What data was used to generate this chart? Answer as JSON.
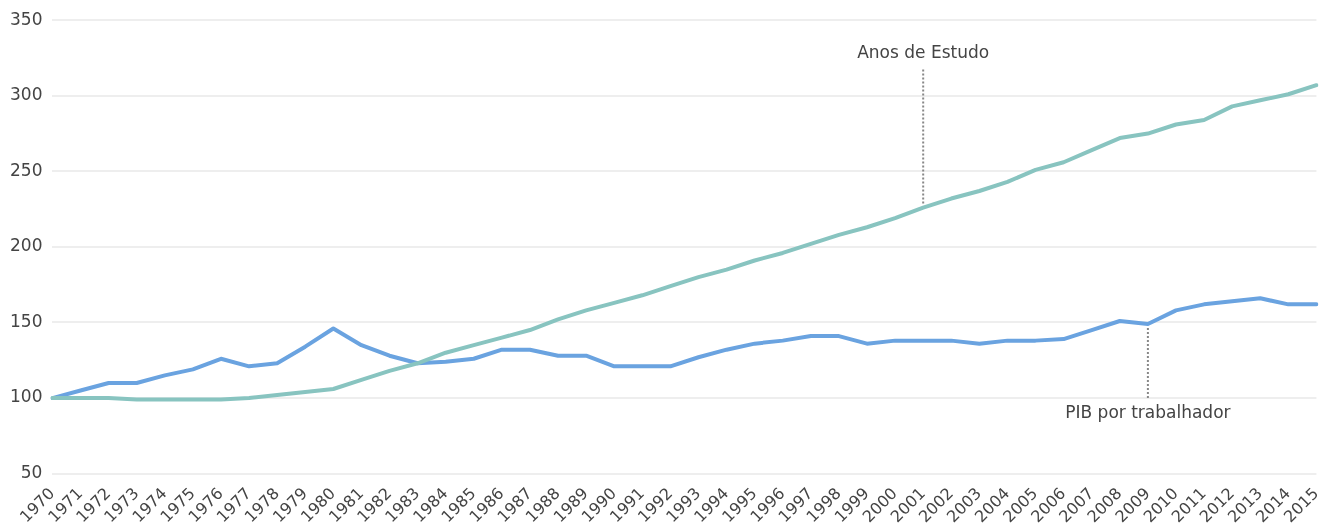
{
  "chart_data": {
    "type": "line",
    "categories": [
      "1970",
      "1971",
      "1972",
      "1973",
      "1974",
      "1975",
      "1976",
      "1977",
      "1978",
      "1979",
      "1980",
      "1981",
      "1982",
      "1983",
      "1984",
      "1985",
      "1986",
      "1987",
      "1988",
      "1989",
      "1990",
      "1991",
      "1992",
      "1993",
      "1994",
      "1995",
      "1996",
      "1997",
      "1998",
      "1999",
      "2000",
      "2001",
      "2002",
      "2003",
      "2004",
      "2005",
      "2006",
      "2007",
      "2008",
      "2009",
      "2010",
      "2011",
      "2012",
      "2013",
      "2014",
      "2015"
    ],
    "series": [
      {
        "color": "#88c4c0",
        "values": [
          100,
          100,
          100,
          99,
          99,
          99,
          99,
          100,
          102,
          104,
          106,
          112,
          118,
          123,
          130,
          135,
          140,
          145,
          152,
          158,
          163,
          168,
          174,
          180,
          185,
          191,
          196,
          202,
          208,
          213,
          219,
          226,
          232,
          237,
          243,
          251,
          256,
          264,
          272,
          275,
          281,
          284,
          293,
          297,
          301,
          307
        ]
      },
      {
        "color": "#6aa3e0",
        "values": [
          100,
          105,
          110,
          110,
          115,
          119,
          126,
          121,
          123,
          134,
          146,
          135,
          128,
          123,
          124,
          126,
          132,
          132,
          128,
          128,
          121,
          121,
          121,
          127,
          132,
          136,
          138,
          141,
          141,
          136,
          138,
          138,
          138,
          136,
          138,
          138,
          139,
          145,
          151,
          149,
          158,
          162,
          164,
          166,
          162,
          162
        ]
      }
    ],
    "ylim": [
      50,
      350
    ],
    "yticks": [
      50,
      100,
      150,
      200,
      250,
      300,
      350
    ],
    "grid": "y",
    "legend": false,
    "marker": "none",
    "line_style": "solid",
    "annotations": [
      {
        "text": "Anos de Estudo",
        "x": "2001",
        "y": 226
      },
      {
        "text": "PIB por trabalhador",
        "x": "2009",
        "y": 149
      }
    ]
  }
}
